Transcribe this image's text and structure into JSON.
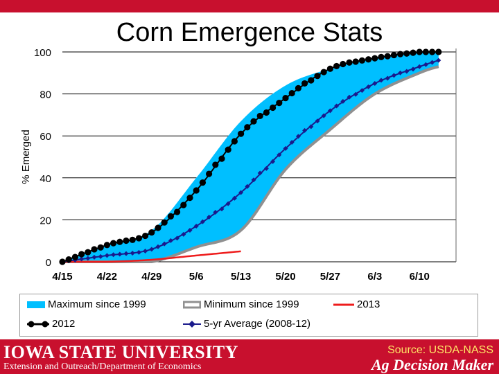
{
  "chart_data": {
    "type": "area",
    "title": "Corn Emergence Stats",
    "xlabel": "",
    "ylabel": "% Emerged",
    "ylim": [
      0,
      100
    ],
    "y_ticks": [
      0,
      20,
      40,
      60,
      80,
      100
    ],
    "x_ticks": [
      "4/15",
      "4/22",
      "4/29",
      "5/6",
      "5/13",
      "5/20",
      "5/27",
      "6/3",
      "6/10"
    ],
    "grid": "horizontal",
    "legend_position": "bottom",
    "series": [
      {
        "name": "Maximum since 1999",
        "style": "band-upper",
        "color": "#00bfff",
        "x": [
          "4/15",
          "4/22",
          "4/29",
          "5/6",
          "5/13",
          "5/20",
          "5/27",
          "6/3",
          "6/10",
          "6/13"
        ],
        "values": [
          0,
          8,
          15,
          40,
          67,
          84,
          92,
          97,
          100,
          100
        ]
      },
      {
        "name": "Minimum since 1999",
        "style": "band-lower",
        "color": "#909090",
        "x": [
          "4/15",
          "4/22",
          "4/29",
          "5/6",
          "5/13",
          "5/20",
          "5/27",
          "6/3",
          "6/10",
          "6/13"
        ],
        "values": [
          0,
          0,
          0,
          7,
          15,
          44,
          63,
          80,
          90,
          93
        ]
      },
      {
        "name": "2013",
        "style": "line",
        "color": "#ee1c1c",
        "x": [
          "4/15",
          "4/22",
          "4/29",
          "5/6",
          "5/13"
        ],
        "values": [
          0,
          0,
          1,
          3,
          5
        ]
      },
      {
        "name": "2012",
        "style": "dots",
        "color": "#000000",
        "x": [
          "4/15",
          "4/22",
          "4/29",
          "5/6",
          "5/13",
          "5/20",
          "5/27",
          "6/3",
          "6/10",
          "6/13"
        ],
        "values": [
          0,
          8,
          14,
          34,
          61,
          78,
          92,
          97,
          100,
          100
        ]
      },
      {
        "name": "5-yr Average (2008-12)",
        "style": "diamonds",
        "color": "#1a1a8c",
        "x": [
          "4/15",
          "4/22",
          "4/29",
          "5/6",
          "5/13",
          "5/20",
          "5/27",
          "6/3",
          "6/10",
          "6/13"
        ],
        "values": [
          0,
          3,
          6,
          17,
          33,
          54,
          72,
          85,
          93,
          96
        ]
      }
    ]
  },
  "footer": {
    "university": "IOWA STATE UNIVERSITY",
    "department": "Extension and Outreach/Department of Economics",
    "source": "Source: USDA-NASS",
    "brand": "Ag Decision Maker"
  }
}
